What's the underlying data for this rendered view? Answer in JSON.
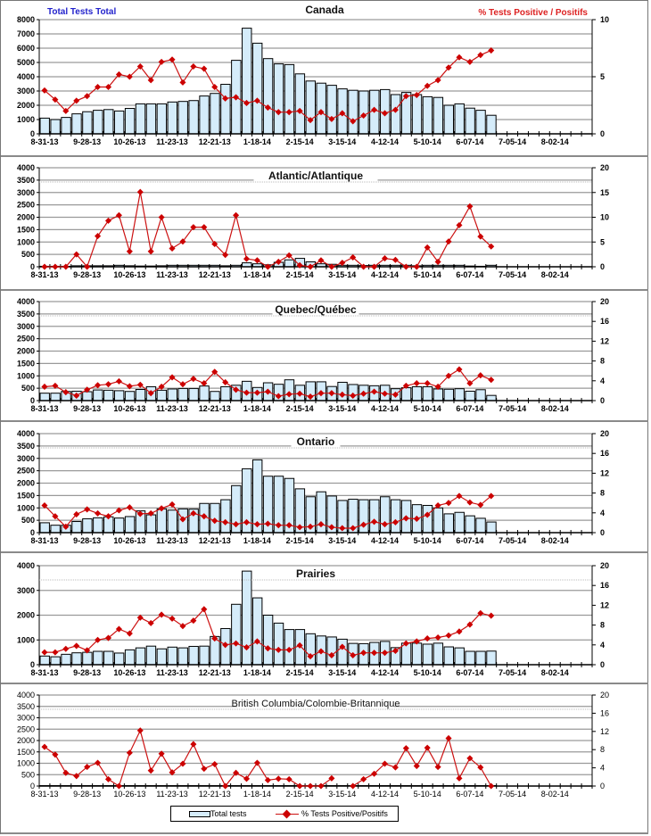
{
  "legend": {
    "bars_label": "Total tests",
    "line_label": "% Tests Positive/Positifs"
  },
  "axis_labels": {
    "left": "Total Tests Total",
    "right": "% Tests Positive / Positifs"
  },
  "colors": {
    "bar_fill": "#d5ecfa",
    "bar_stroke": "#000000",
    "line": "#cc1111",
    "marker": "#cc0000",
    "left_label": "#2222cc",
    "right_label": "#dd2222"
  },
  "chart_data": [
    {
      "type": "bar",
      "title": "Canada",
      "x_tick_labels": [
        "8-31-13",
        "9-28-13",
        "10-26-13",
        "11-23-13",
        "12-21-13",
        "1-18-14",
        "2-15-14",
        "3-15-14",
        "4-12-14",
        "5-10-14",
        "6-07-14",
        "7-05-14",
        "8-02-14"
      ],
      "slots": 52,
      "ylim_left": [
        0,
        8000
      ],
      "yticks_left": [
        "0",
        "1000",
        "2000",
        "3000",
        "4000",
        "5000",
        "6000",
        "7000",
        "8000"
      ],
      "ylim_right": [
        0,
        10
      ],
      "yticks_right": [
        "0",
        "5",
        "10"
      ],
      "series": [
        {
          "name": "Total tests",
          "kind": "bar",
          "values": [
            1100,
            1000,
            1150,
            1400,
            1550,
            1650,
            1700,
            1600,
            1780,
            2100,
            2100,
            2100,
            2230,
            2270,
            2330,
            2650,
            2830,
            3470,
            5150,
            7400,
            6350,
            5270,
            4900,
            4850,
            4200,
            3700,
            3550,
            3400,
            3150,
            3050,
            3000,
            3050,
            3100,
            2750,
            2900,
            2750,
            2600,
            2550,
            2000,
            2100,
            1800,
            1650,
            1300
          ]
        },
        {
          "name": "% Tests Positive/Positifs",
          "kind": "line",
          "values": [
            3.8,
            3.0,
            2.0,
            2.9,
            3.3,
            4.1,
            4.1,
            5.2,
            5.0,
            5.9,
            4.7,
            6.3,
            6.5,
            4.5,
            5.9,
            5.7,
            4.1,
            3.1,
            3.2,
            2.7,
            2.9,
            2.3,
            1.9,
            1.9,
            2.0,
            1.2,
            1.9,
            1.3,
            1.8,
            1.1,
            1.6,
            2.1,
            1.8,
            2.1,
            3.3,
            3.4,
            4.2,
            4.7,
            5.8,
            6.7,
            6.3,
            6.9,
            7.3
          ]
        }
      ]
    },
    {
      "type": "bar",
      "title": "Atlantic/Atlantique",
      "x_tick_labels": [
        "8-31-13",
        "9-28-13",
        "10-26-13",
        "11-23-13",
        "12-21-13",
        "1-18-14",
        "2-15-14",
        "3-15-14",
        "4-12-14",
        "5-10-14",
        "6-07-14",
        "7-05-14",
        "8-02-14"
      ],
      "slots": 52,
      "ylim_left": [
        0,
        4000
      ],
      "yticks_left": [
        "0",
        "500",
        "1000",
        "1500",
        "2000",
        "2500",
        "3000",
        "3500",
        "4000"
      ],
      "ylim_right": [
        0,
        20
      ],
      "yticks_right": [
        "0",
        "5",
        "10",
        "15",
        "20"
      ],
      "series": [
        {
          "name": "Total tests",
          "kind": "bar",
          "values": [
            20,
            20,
            20,
            40,
            40,
            40,
            40,
            60,
            40,
            30,
            30,
            40,
            60,
            60,
            60,
            60,
            60,
            40,
            60,
            160,
            120,
            80,
            180,
            280,
            340,
            200,
            120,
            100,
            60,
            60,
            50,
            60,
            60,
            60,
            60,
            40,
            60,
            60,
            60,
            60,
            30,
            20,
            60
          ]
        },
        {
          "name": "% Tests Positive/Positifs",
          "kind": "line",
          "values": [
            0,
            0,
            0,
            2.5,
            0,
            6.2,
            9.3,
            10.4,
            3.1,
            15.1,
            3.1,
            10.0,
            3.7,
            5.1,
            8.0,
            8.0,
            4.6,
            2.4,
            10.4,
            1.6,
            1.3,
            0,
            1.0,
            2.3,
            0.3,
            0,
            1.3,
            0,
            0.8,
            1.9,
            0,
            0,
            1.7,
            1.4,
            0,
            0,
            3.9,
            1.0,
            5.1,
            8.4,
            12.2,
            6.1,
            4.1
          ]
        }
      ]
    },
    {
      "type": "bar",
      "title": "Quebec/Québec",
      "x_tick_labels": [
        "8-31-13",
        "9-28-13",
        "10-26-13",
        "11-23-13",
        "12-21-13",
        "1-18-14",
        "2-15-14",
        "3-15-14",
        "4-12-14",
        "5-10-14",
        "6-07-14",
        "7-05-14",
        "8-02-14"
      ],
      "slots": 52,
      "ylim_left": [
        0,
        4000
      ],
      "yticks_left": [
        "0",
        "500",
        "1000",
        "1500",
        "2000",
        "2500",
        "3000",
        "3500",
        "4000"
      ],
      "ylim_right": [
        0,
        20
      ],
      "yticks_right": [
        "0",
        "4",
        "8",
        "12",
        "16",
        "20"
      ],
      "series": [
        {
          "name": "Total tests",
          "kind": "bar",
          "values": [
            300,
            300,
            370,
            380,
            360,
            430,
            420,
            400,
            370,
            450,
            560,
            420,
            470,
            490,
            490,
            590,
            370,
            560,
            620,
            780,
            530,
            720,
            660,
            840,
            620,
            760,
            760,
            570,
            740,
            650,
            620,
            600,
            620,
            480,
            520,
            560,
            560,
            470,
            460,
            480,
            380,
            440,
            210
          ]
        },
        {
          "name": "% Tests Positive/Positifs",
          "kind": "line",
          "values": [
            2.8,
            3.0,
            1.7,
            1.0,
            2.2,
            3.1,
            3.3,
            3.9,
            2.9,
            3.2,
            1.5,
            2.8,
            4.7,
            3.3,
            4.4,
            3.5,
            5.8,
            3.7,
            2.2,
            1.6,
            1.6,
            1.8,
            0.9,
            1.3,
            1.4,
            0.8,
            1.5,
            1.5,
            1.2,
            1.0,
            1.4,
            1.8,
            1.4,
            1.2,
            3.0,
            3.5,
            3.5,
            2.8,
            5.0,
            6.3,
            3.5,
            5.1,
            4.2
          ]
        }
      ]
    },
    {
      "type": "bar",
      "title": "Ontario",
      "x_tick_labels": [
        "8-31-13",
        "9-28-13",
        "10-26-13",
        "11-23-13",
        "12-21-13",
        "1-18-14",
        "2-15-14",
        "3-15-14",
        "4-12-14",
        "5-10-14",
        "6-07-14",
        "7-05-14",
        "8-02-14"
      ],
      "slots": 52,
      "ylim_left": [
        0,
        4000
      ],
      "yticks_left": [
        "0",
        "500",
        "1000",
        "1500",
        "2000",
        "2500",
        "3000",
        "3500",
        "4000"
      ],
      "ylim_right": [
        0,
        20
      ],
      "yticks_right": [
        "0",
        "4",
        "8",
        "12",
        "16",
        "20"
      ],
      "series": [
        {
          "name": "Total tests",
          "kind": "bar",
          "values": [
            400,
            300,
            300,
            450,
            560,
            600,
            640,
            590,
            650,
            880,
            720,
            960,
            910,
            960,
            950,
            1180,
            1180,
            1330,
            1900,
            2580,
            2940,
            2280,
            2280,
            2190,
            1770,
            1450,
            1650,
            1480,
            1300,
            1350,
            1330,
            1330,
            1450,
            1330,
            1300,
            1130,
            1100,
            1000,
            760,
            820,
            680,
            580,
            430
          ]
        },
        {
          "name": "% Tests Positive/Positifs",
          "kind": "line",
          "values": [
            5.5,
            3.3,
            1.2,
            3.7,
            4.7,
            3.9,
            3.3,
            4.5,
            5.1,
            3.8,
            3.9,
            4.9,
            5.7,
            2.7,
            3.9,
            3.3,
            2.4,
            2.1,
            1.7,
            2.1,
            1.7,
            1.8,
            1.5,
            1.5,
            1.1,
            1.2,
            1.7,
            1.1,
            0.9,
            0.9,
            1.6,
            2.2,
            1.7,
            2.1,
            2.9,
            2.8,
            3.6,
            5.5,
            6.0,
            7.4,
            6.1,
            5.6,
            7.4
          ]
        }
      ]
    },
    {
      "type": "bar",
      "title": "Prairies",
      "x_tick_labels": [
        "8-31-13",
        "9-28-13",
        "10-26-13",
        "11-23-13",
        "12-21-13",
        "1-18-14",
        "2-15-14",
        "3-15-14",
        "4-12-14",
        "5-10-14",
        "6-07-14",
        "7-05-14",
        "8-02-14"
      ],
      "slots": 52,
      "ylim_left": [
        0,
        4000
      ],
      "yticks_left": [
        "0",
        "1000",
        "2000",
        "3000",
        "4000"
      ],
      "ylim_right": [
        0,
        20
      ],
      "yticks_right": [
        "0",
        "4",
        "8",
        "12",
        "16",
        "20"
      ],
      "series": [
        {
          "name": "Total tests",
          "kind": "bar",
          "values": [
            350,
            320,
            420,
            480,
            500,
            540,
            540,
            470,
            600,
            680,
            750,
            640,
            710,
            680,
            740,
            750,
            1140,
            1460,
            2440,
            3780,
            2700,
            2000,
            1680,
            1420,
            1420,
            1250,
            1160,
            1120,
            1030,
            860,
            850,
            900,
            940,
            690,
            870,
            870,
            830,
            870,
            720,
            680,
            540,
            540,
            550
          ]
        },
        {
          "name": "% Tests Positive/Positifs",
          "kind": "line",
          "values": [
            2.5,
            2.5,
            3.2,
            3.8,
            2.9,
            5.0,
            5.4,
            7.2,
            6.3,
            9.5,
            8.4,
            10.1,
            9.3,
            7.8,
            8.9,
            11.2,
            5.3,
            4.0,
            4.3,
            3.5,
            4.7,
            3.3,
            3.0,
            3.0,
            3.9,
            1.7,
            2.7,
            1.9,
            3.6,
            1.9,
            2.4,
            2.4,
            2.4,
            2.8,
            4.3,
            4.7,
            5.3,
            5.5,
            5.9,
            6.7,
            8.1,
            10.4,
            9.9
          ]
        }
      ]
    },
    {
      "type": "bar",
      "title": "British Columbia/Colombie-Britannique",
      "x_tick_labels": [
        "8-31-13",
        "9-28-13",
        "10-26-13",
        "11-23-13",
        "12-21-13",
        "1-18-14",
        "2-15-14",
        "3-15-14",
        "4-12-14",
        "5-10-14",
        "6-07-14",
        "7-05-14",
        "8-02-14"
      ],
      "slots": 52,
      "ylim_left": [
        0,
        4000
      ],
      "yticks_left": [
        "0",
        "500",
        "1000",
        "1500",
        "2000",
        "2500",
        "3000",
        "3500",
        "4000"
      ],
      "ylim_right": [
        0,
        20
      ],
      "yticks_right": [
        "0",
        "4",
        "8",
        "12",
        "16",
        "20"
      ],
      "series": [
        {
          "name": "Total tests",
          "kind": "bar",
          "values": [
            20,
            20,
            20,
            20,
            20,
            20,
            20,
            20,
            20,
            20,
            20,
            20,
            20,
            20,
            20,
            20,
            20,
            20,
            20,
            20,
            20,
            20,
            20,
            20,
            20,
            20,
            20,
            20,
            20,
            20,
            20,
            20,
            20,
            20,
            20,
            20,
            20,
            20,
            20,
            20,
            20,
            20,
            20
          ]
        },
        {
          "name": "% Tests Positive/Positifs",
          "kind": "line",
          "values": [
            8.6,
            6.9,
            2.9,
            2.2,
            4.2,
            5.1,
            1.5,
            0,
            7.3,
            12.2,
            3.4,
            7.1,
            3.0,
            4.9,
            9.2,
            3.8,
            4.8,
            0,
            2.9,
            1.6,
            5.1,
            1.3,
            1.6,
            1.5,
            0,
            0,
            0,
            1.7,
            null,
            0,
            1.5,
            2.7,
            4.9,
            4.1,
            8.3,
            4.4,
            8.4,
            4.2,
            10.5,
            1.7,
            6.1,
            4.1,
            0
          ]
        }
      ]
    }
  ]
}
